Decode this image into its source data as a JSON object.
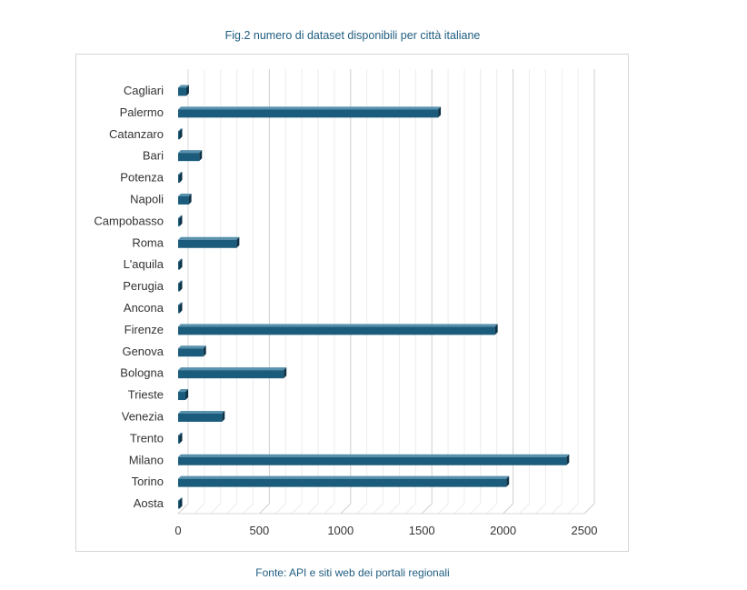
{
  "chart_data": {
    "type": "bar",
    "orientation": "horizontal",
    "title": "Fig.2 numero di dataset disponibili per città italiane",
    "source": "Fonte: API e siti web dei portali regionali",
    "categories": [
      "Cagliari",
      "Palermo",
      "Catanzaro",
      "Bari",
      "Potenza",
      "Napoli",
      "Campobasso",
      "Roma",
      "L'aquila",
      "Perugia",
      "Ancona",
      "Firenze",
      "Genova",
      "Bologna",
      "Trieste",
      "Venezia",
      "Trento",
      "Milano",
      "Torino",
      "Aosta"
    ],
    "values": [
      50,
      1600,
      5,
      130,
      2,
      65,
      4,
      360,
      2,
      2,
      3,
      1950,
      155,
      650,
      45,
      270,
      2,
      2390,
      2020,
      3
    ],
    "xlim": [
      0,
      2500
    ],
    "xticks": [
      "0",
      "500",
      "1000",
      "1500",
      "2000",
      "2500"
    ],
    "xlabel": "",
    "ylabel": "",
    "grid": true,
    "bar_color": "#1b5c7c",
    "bar_top_color": "#5791ad",
    "bar_side_color": "#0e3347"
  }
}
